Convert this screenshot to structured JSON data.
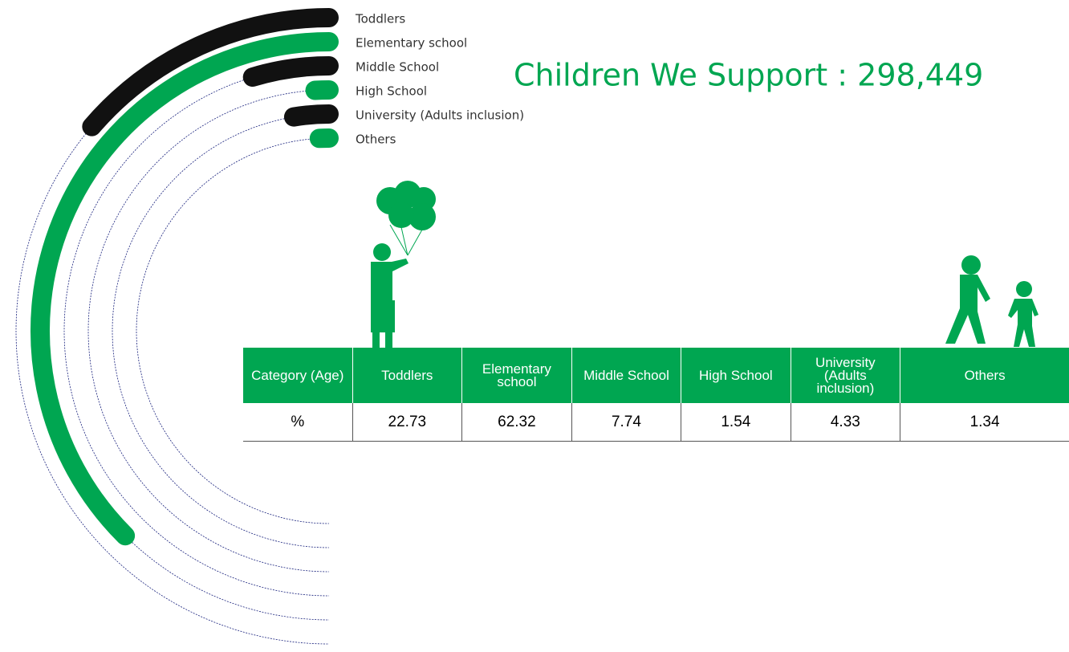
{
  "chart_data": {
    "type": "radial_bar",
    "title": "Children We Support : 298,449",
    "categories": [
      "Toddlers",
      "Elementary school",
      "Middle School",
      "High School",
      "University (Adults inclusion)",
      "Others"
    ],
    "values": [
      22.73,
      62.32,
      7.74,
      1.54,
      4.33,
      1.34
    ],
    "colors": [
      "#111111",
      "#00a651",
      "#111111",
      "#00a651",
      "#111111",
      "#00a651"
    ],
    "rlim": [
      0,
      83
    ]
  },
  "table": {
    "corner": "Category (Age)",
    "row_label": "%"
  }
}
